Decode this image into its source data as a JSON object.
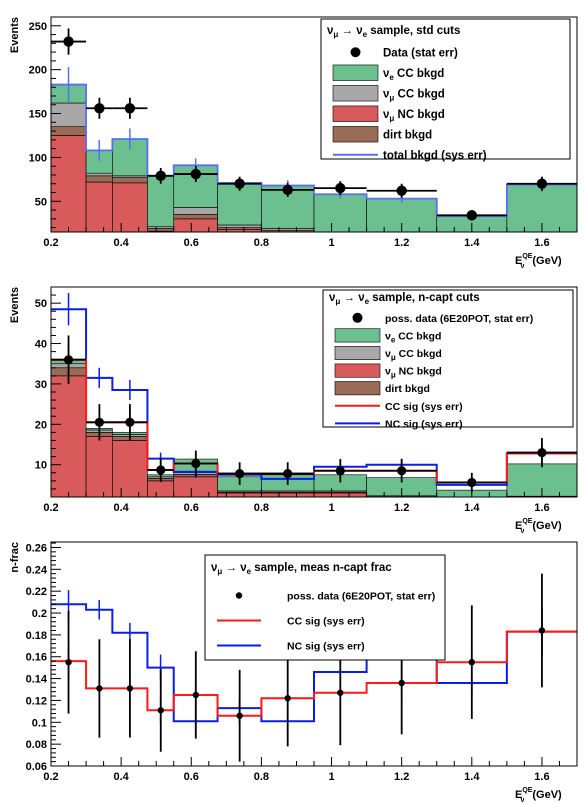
{
  "chart_data": [
    {
      "type": "bar",
      "xlabel": "E",
      "xlabel_sup": "QE",
      "xlabel_sub": "ν",
      "xlabel_unit": "(GeV)",
      "ylabel": "Events",
      "xlim": [
        0.2,
        1.7
      ],
      "ylim": [
        15,
        260
      ],
      "x_ticks": [
        "0.2",
        "0.4",
        "0.6",
        "0.8",
        "1",
        "1.2",
        "1.4",
        "1.6"
      ],
      "y_ticks": [
        "50",
        "100",
        "150",
        "200",
        "250"
      ],
      "legend": {
        "title_parts": [
          "ν",
          "μ",
          " → ν",
          "e",
          " sample, std cuts"
        ],
        "entries": [
          {
            "label": "Data (stat err)",
            "sub": ""
          },
          {
            "label": "ν",
            "sub": "e",
            "rest": " CC bkgd"
          },
          {
            "label": "ν",
            "sub": "μ",
            "rest": " CC bkgd"
          },
          {
            "label": "ν",
            "sub": "μ",
            "rest": " NC bkgd"
          },
          {
            "label": "dirt bkgd",
            "sub": ""
          },
          {
            "label": "total bkgd (sys err)",
            "sub": ""
          }
        ]
      },
      "bin_edges": [
        0.2,
        0.3,
        0.375,
        0.475,
        0.55,
        0.675,
        0.8,
        0.95,
        1.1,
        1.3,
        1.5,
        1.7
      ],
      "stack": [
        {
          "name": "ν_μ NC bkgd",
          "color": "#d95a5a",
          "values": [
            125,
            72,
            71,
            16,
            30,
            18,
            15,
            12,
            11,
            6,
            13
          ]
        },
        {
          "name": "dirt bkgd",
          "color": "#9a6b57",
          "values": [
            10,
            7,
            6,
            3,
            5,
            2,
            2,
            1,
            1,
            0,
            0
          ]
        },
        {
          "name": "ν_μ CC bkgd",
          "color": "#a8a8a8",
          "values": [
            27,
            3,
            2,
            2,
            8,
            3,
            2,
            2,
            1,
            1,
            1
          ]
        },
        {
          "name": "ν_e CC bkgd",
          "color": "#6cbf8e",
          "values": [
            21,
            26,
            42,
            58,
            48,
            48,
            49,
            43,
            40,
            26,
            55
          ]
        }
      ],
      "total_bkgd": {
        "color": "#5a6ef5",
        "values": [
          183,
          108,
          121,
          79,
          91,
          71,
          68,
          58,
          53,
          33,
          69
        ],
        "err": [
          20,
          12,
          12,
          7,
          8,
          6,
          6,
          5,
          5,
          3,
          8
        ]
      },
      "data": {
        "x": [
          0.25,
          0.338,
          0.425,
          0.513,
          0.613,
          0.738,
          0.875,
          1.025,
          1.2,
          1.4,
          1.6
        ],
        "y": [
          232,
          156,
          156,
          79,
          81,
          70,
          63,
          65,
          62,
          34,
          70
        ],
        "err": [
          15,
          12,
          12,
          9,
          9,
          8,
          8,
          8,
          8,
          6,
          8
        ],
        "xerr_lo": [
          0.05,
          0.038,
          0.05,
          0.038,
          0.062,
          0.063,
          0.075,
          0.075,
          0.1,
          0.1,
          0.1
        ],
        "xerr_hi": [
          0.05,
          0.037,
          0.05,
          0.037,
          0.062,
          0.062,
          0.075,
          0.075,
          0.1,
          0.1,
          0.1
        ]
      }
    },
    {
      "type": "bar",
      "xlabel": "E",
      "xlabel_sup": "QE",
      "xlabel_sub": "ν",
      "xlabel_unit": "(GeV)",
      "ylabel": "Events",
      "xlim": [
        0.2,
        1.7
      ],
      "ylim": [
        2,
        54
      ],
      "x_ticks": [
        "0.2",
        "0.4",
        "0.6",
        "0.8",
        "1",
        "1.2",
        "1.4",
        "1.6"
      ],
      "y_ticks": [
        "10",
        "20",
        "30",
        "40",
        "50"
      ],
      "legend": {
        "title_parts": [
          "ν",
          "μ",
          " → ν",
          "e",
          " sample, n-capt cuts"
        ],
        "entries": [
          {
            "label": "poss. data (6E20POT, stat err)",
            "sub": ""
          },
          {
            "label": "ν",
            "sub": "e",
            "rest": " CC bkgd"
          },
          {
            "label": "ν",
            "sub": "μ",
            "rest": " CC bkgd"
          },
          {
            "label": "ν",
            "sub": "μ",
            "rest": " NC bkgd"
          },
          {
            "label": "dirt bkgd",
            "sub": ""
          },
          {
            "label": "CC sig (sys err)",
            "sub": ""
          },
          {
            "label": "NC sig (sys err)",
            "sub": ""
          }
        ]
      },
      "bin_edges": [
        0.2,
        0.3,
        0.375,
        0.475,
        0.55,
        0.675,
        0.8,
        0.95,
        1.1,
        1.3,
        1.5,
        1.7
      ],
      "stack": [
        {
          "name": "ν_μ NC bkgd",
          "color": "#d95a5a",
          "values": [
            32,
            17,
            16,
            6,
            7,
            3,
            3,
            3,
            2,
            1,
            2
          ]
        },
        {
          "name": "dirt bkgd",
          "color": "#9a6b57",
          "values": [
            2,
            1,
            1,
            0.6,
            0.6,
            0.2,
            0.2,
            0.2,
            0.1,
            0,
            0
          ]
        },
        {
          "name": "ν_μ CC bkgd",
          "color": "#a8a8a8",
          "values": [
            1,
            0.6,
            0.5,
            0.4,
            0.8,
            0.3,
            0.3,
            0.3,
            0.2,
            0.2,
            0.2
          ]
        },
        {
          "name": "ν_e CC bkgd",
          "color": "#6cbf8e",
          "values": [
            1,
            0.4,
            0.5,
            0.5,
            3,
            3.5,
            4,
            4,
            4.5,
            2.5,
            8
          ]
        }
      ],
      "cc_sig": {
        "color": "#ff1a1a",
        "values": [
          36,
          20.5,
          20.5,
          8.7,
          10.3,
          7.8,
          7.8,
          8.5,
          8.5,
          5.6,
          12.8
        ]
      },
      "nc_sig": {
        "color": "#0a1fe6",
        "values": [
          48.5,
          31.5,
          28.5,
          11.5,
          8.2,
          7.5,
          6.5,
          9.5,
          10,
          5,
          12.8
        ]
      },
      "sig_err": [
        4,
        2.5,
        2.5,
        1.5,
        1.5,
        1.2,
        1.2,
        1.5,
        1.5,
        1.2,
        2
      ],
      "data": {
        "x": [
          0.25,
          0.338,
          0.425,
          0.513,
          0.613,
          0.738,
          0.875,
          1.025,
          1.2,
          1.4,
          1.6
        ],
        "y": [
          36,
          20.5,
          20.5,
          8.7,
          10.3,
          7.8,
          7.8,
          8.5,
          8.5,
          5.6,
          13
        ],
        "err": [
          6,
          4.5,
          4.5,
          3,
          3.2,
          2.8,
          2.8,
          2.9,
          2.9,
          2.4,
          3.6
        ],
        "xerr_lo": [
          0.05,
          0.038,
          0.05,
          0.038,
          0.062,
          0.063,
          0.075,
          0.075,
          0.1,
          0.1,
          0.1
        ],
        "xerr_hi": [
          0.05,
          0.037,
          0.05,
          0.037,
          0.062,
          0.062,
          0.075,
          0.075,
          0.1,
          0.1,
          0.1
        ]
      }
    },
    {
      "type": "line",
      "xlabel": "E",
      "xlabel_sup": "QE",
      "xlabel_sub": "ν",
      "xlabel_unit": "(GeV)",
      "ylabel": "n-frac",
      "xlim": [
        0.2,
        1.7
      ],
      "ylim": [
        0.06,
        0.265
      ],
      "x_ticks": [
        "0.2",
        "0.4",
        "0.6",
        "0.8",
        "1",
        "1.2",
        "1.4",
        "1.6"
      ],
      "y_ticks": [
        "0.06",
        "0.08",
        "0.1",
        "0.12",
        "0.14",
        "0.16",
        "0.18",
        "0.2",
        "0.22",
        "0.24",
        "0.26"
      ],
      "legend": {
        "title_parts": [
          "ν",
          "μ",
          " → ν",
          "e",
          " sample, meas n-capt frac"
        ],
        "entries": [
          {
            "label": "poss. data (6E20POT, stat err)",
            "sub": ""
          },
          {
            "label": "CC sig (sys err)",
            "sub": ""
          },
          {
            "label": "NC sig (sys err)",
            "sub": ""
          }
        ]
      },
      "bin_edges": [
        0.2,
        0.3,
        0.375,
        0.475,
        0.55,
        0.675,
        0.8,
        0.95,
        1.1,
        1.3,
        1.5,
        1.7
      ],
      "cc_sig": {
        "color": "#ff1a1a",
        "values": [
          0.156,
          0.131,
          0.131,
          0.111,
          0.125,
          0.106,
          0.122,
          0.127,
          0.136,
          0.155,
          0.183
        ]
      },
      "nc_sig": {
        "color": "#0a1fe6",
        "values": [
          0.208,
          0.203,
          0.182,
          0.15,
          0.101,
          0.113,
          0.101,
          0.146,
          0.161,
          0.136,
          0.183
        ]
      },
      "sig_err": [
        0.013,
        0.009,
        0.009,
        0.012,
        0.012,
        0.008,
        0.01,
        0.012,
        0.013,
        0.012,
        0.022
      ],
      "data": {
        "x": [
          0.25,
          0.338,
          0.425,
          0.513,
          0.613,
          0.738,
          0.875,
          1.025,
          1.2,
          1.4,
          1.6
        ],
        "y": [
          0.155,
          0.131,
          0.131,
          0.111,
          0.125,
          0.106,
          0.122,
          0.127,
          0.136,
          0.155,
          0.184
        ],
        "err": [
          0.047,
          0.045,
          0.045,
          0.038,
          0.04,
          0.042,
          0.044,
          0.048,
          0.047,
          0.052,
          0.052
        ],
        "xerr_lo": [
          0,
          0,
          0,
          0,
          0,
          0,
          0,
          0,
          0,
          0,
          0
        ],
        "xerr_hi": [
          0,
          0,
          0,
          0,
          0,
          0,
          0,
          0,
          0,
          0,
          0
        ]
      }
    }
  ]
}
